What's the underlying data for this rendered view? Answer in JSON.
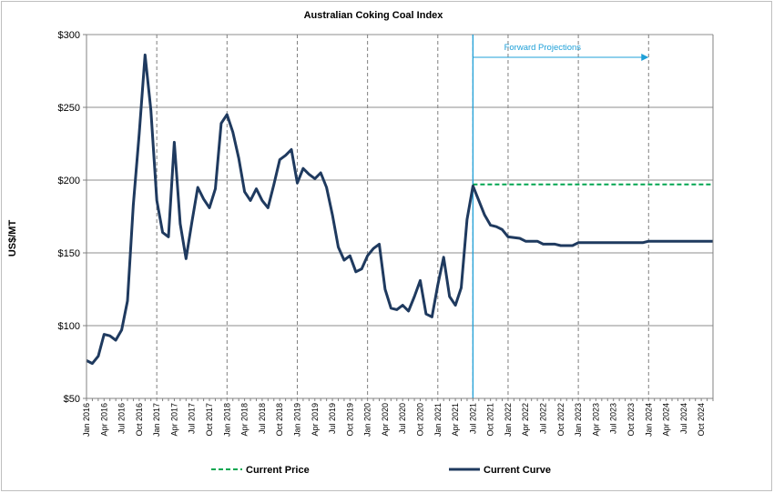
{
  "chart_data": {
    "type": "line",
    "title": "Australian Coking Coal Index",
    "ylabel": "US$/MT",
    "ylim": [
      50,
      300
    ],
    "yticks": [
      50,
      100,
      150,
      200,
      250,
      300
    ],
    "ytick_labels": [
      "$50",
      "$100",
      "$150",
      "$200",
      "$250",
      "$300"
    ],
    "x_start": "2016-01",
    "x_end": "2024-12",
    "xtick_labels": [
      "Jan 2016",
      "Apr 2016",
      "Jul 2016",
      "Oct 2016",
      "Jan 2017",
      "Apr 2017",
      "Jul 2017",
      "Oct 2017",
      "Jan 2018",
      "Apr 2018",
      "Jul 2018",
      "Oct 2018",
      "Jan 2019",
      "Apr 2019",
      "Jul 2019",
      "Oct 2019",
      "Jan 2020",
      "Apr 2020",
      "Jul 2020",
      "Oct 2020",
      "Jan 2021",
      "Apr 2021",
      "Jul 2021",
      "Oct 2021",
      "Jan 2022",
      "Apr 2022",
      "Jul 2022",
      "Oct 2022",
      "Jan 2023",
      "Apr 2023",
      "Jul 2023",
      "Oct 2023",
      "Jan 2024",
      "Apr 2024",
      "Jul 2024",
      "Oct 2024"
    ],
    "vertical_dashed_gridlines_at": [
      "Jan 2017",
      "Jan 2018",
      "Jan 2019",
      "Jan 2020",
      "Jan 2021",
      "Jul 2021",
      "Jan 2022",
      "Jan 2023",
      "Jan 2024"
    ],
    "grid": "horizontal",
    "legend_position": "bottom",
    "annotation": {
      "text": "Forward Projections",
      "from": "Jul 2021",
      "to": "Jan 2024",
      "color": "#1fa0d8"
    },
    "series": [
      {
        "name": "Current Curve",
        "color": "#1f3a5f",
        "style": "solid",
        "points": [
          [
            "2016-01",
            76
          ],
          [
            "2016-02",
            74
          ],
          [
            "2016-03",
            79
          ],
          [
            "2016-04",
            94
          ],
          [
            "2016-05",
            93
          ],
          [
            "2016-06",
            90
          ],
          [
            "2016-07",
            97
          ],
          [
            "2016-08",
            117
          ],
          [
            "2016-09",
            183
          ],
          [
            "2016-10",
            232
          ],
          [
            "2016-11",
            286
          ],
          [
            "2016-12",
            248
          ],
          [
            "2017-01",
            186
          ],
          [
            "2017-02",
            164
          ],
          [
            "2017-03",
            161
          ],
          [
            "2017-04",
            226
          ],
          [
            "2017-05",
            170
          ],
          [
            "2017-06",
            146
          ],
          [
            "2017-07",
            171
          ],
          [
            "2017-08",
            195
          ],
          [
            "2017-09",
            187
          ],
          [
            "2017-10",
            181
          ],
          [
            "2017-11",
            194
          ],
          [
            "2017-12",
            239
          ],
          [
            "2018-01",
            245
          ],
          [
            "2018-02",
            233
          ],
          [
            "2018-03",
            215
          ],
          [
            "2018-04",
            192
          ],
          [
            "2018-05",
            186
          ],
          [
            "2018-06",
            194
          ],
          [
            "2018-07",
            186
          ],
          [
            "2018-08",
            181
          ],
          [
            "2018-09",
            197
          ],
          [
            "2018-10",
            214
          ],
          [
            "2018-11",
            217
          ],
          [
            "2018-12",
            221
          ],
          [
            "2019-01",
            198
          ],
          [
            "2019-02",
            208
          ],
          [
            "2019-03",
            204
          ],
          [
            "2019-04",
            201
          ],
          [
            "2019-05",
            205
          ],
          [
            "2019-06",
            195
          ],
          [
            "2019-07",
            176
          ],
          [
            "2019-08",
            154
          ],
          [
            "2019-09",
            145
          ],
          [
            "2019-10",
            148
          ],
          [
            "2019-11",
            137
          ],
          [
            "2019-12",
            139
          ],
          [
            "2020-01",
            148
          ],
          [
            "2020-02",
            153
          ],
          [
            "2020-03",
            156
          ],
          [
            "2020-04",
            125
          ],
          [
            "2020-05",
            112
          ],
          [
            "2020-06",
            111
          ],
          [
            "2020-07",
            114
          ],
          [
            "2020-08",
            110
          ],
          [
            "2020-09",
            120
          ],
          [
            "2020-10",
            131
          ],
          [
            "2020-11",
            108
          ],
          [
            "2020-12",
            106
          ],
          [
            "2021-01",
            128
          ],
          [
            "2021-02",
            147
          ],
          [
            "2021-03",
            120
          ],
          [
            "2021-04",
            114
          ],
          [
            "2021-05",
            126
          ],
          [
            "2021-06",
            173
          ],
          [
            "2021-07",
            196
          ],
          [
            "2021-08",
            186
          ],
          [
            "2021-09",
            176
          ],
          [
            "2021-10",
            169
          ],
          [
            "2021-11",
            168
          ],
          [
            "2021-12",
            166
          ],
          [
            "2022-01",
            161
          ],
          [
            "2022-03",
            160
          ],
          [
            "2022-04",
            158
          ],
          [
            "2022-06",
            158
          ],
          [
            "2022-07",
            156
          ],
          [
            "2022-09",
            156
          ],
          [
            "2022-10",
            155
          ],
          [
            "2022-12",
            155
          ],
          [
            "2023-01",
            157
          ],
          [
            "2023-12",
            157
          ],
          [
            "2024-01",
            158
          ],
          [
            "2024-12",
            158
          ]
        ]
      },
      {
        "name": "Current Price",
        "color": "#00a650",
        "style": "dashed",
        "points": [
          [
            "2021-07",
            197
          ],
          [
            "2024-12",
            197
          ]
        ]
      }
    ]
  }
}
